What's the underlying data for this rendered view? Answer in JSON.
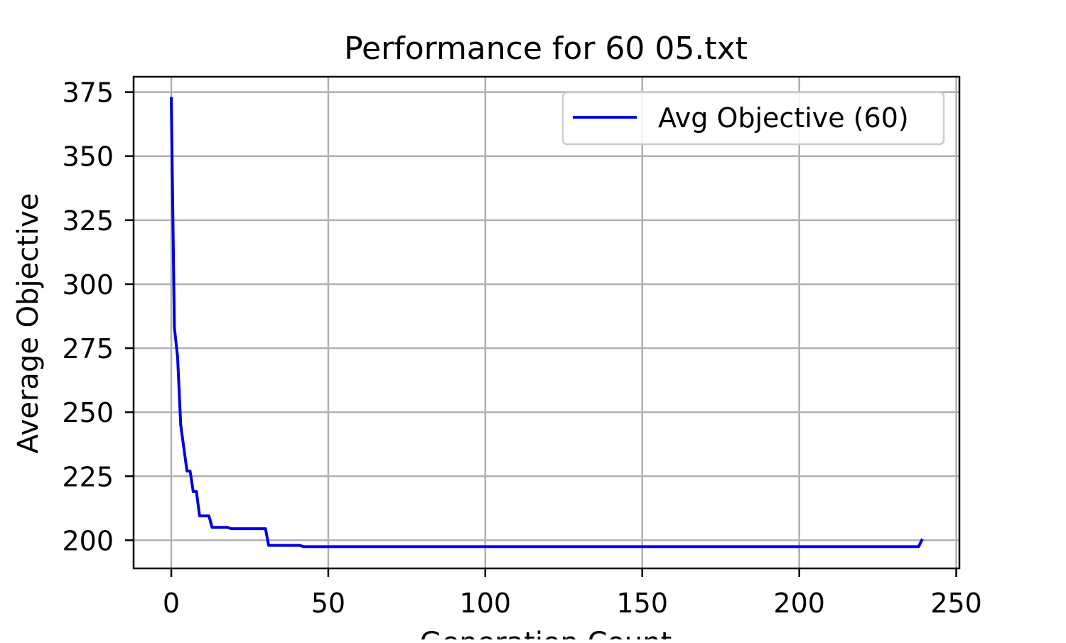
{
  "chart_data": {
    "type": "line",
    "title": "Performance for 60 05.txt",
    "xlabel": "Generation Count",
    "ylabel": "Average Objective",
    "xlim": [
      -12,
      251
    ],
    "ylim": [
      189,
      381
    ],
    "xticks": [
      0,
      50,
      100,
      150,
      200,
      250
    ],
    "yticks": [
      200,
      225,
      250,
      275,
      300,
      325,
      350,
      375
    ],
    "grid": true,
    "legend": "upper right",
    "series": [
      {
        "name": "Avg Objective (60)",
        "color": "#0000e0",
        "x": [
          0,
          1,
          2,
          3,
          4,
          5,
          6,
          7,
          8,
          9,
          10,
          12,
          13,
          14,
          18,
          19,
          20,
          29,
          30,
          31,
          41,
          42,
          43,
          238,
          239
        ],
        "y": [
          372.5,
          283,
          271.5,
          245,
          236,
          227,
          227,
          219,
          219,
          209.5,
          209.5,
          209.5,
          205,
          205,
          205,
          204.5,
          204.5,
          204.5,
          204.5,
          198,
          198,
          197.5,
          197.5,
          197.5,
          200
        ]
      }
    ]
  }
}
